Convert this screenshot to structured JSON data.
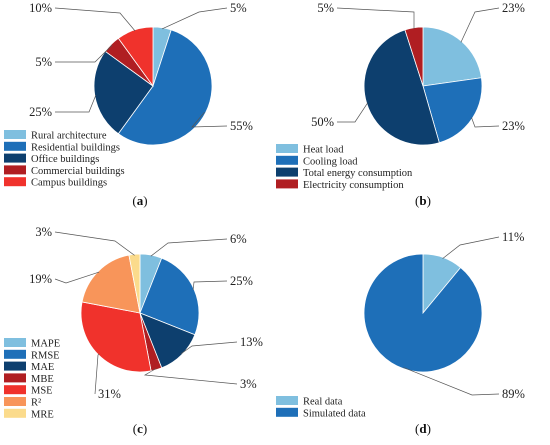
{
  "chart_data": [
    {
      "type": "pie",
      "panel": "a",
      "caption_open": "(",
      "caption_letter": "a",
      "caption_close": ")",
      "slices": [
        {
          "name": "Rural architecture",
          "value": 5,
          "label": "5%",
          "color": "#7FBFDF"
        },
        {
          "name": "Residential buildings",
          "value": 55,
          "label": "55%",
          "color": "#1E6FB8"
        },
        {
          "name": "Office buildings",
          "value": 25,
          "label": "25%",
          "color": "#0D3F6E"
        },
        {
          "name": "Commercial buildings",
          "value": 5,
          "label": "5%",
          "color": "#B01E22"
        },
        {
          "name": "Campus buildings",
          "value": 10,
          "label": "10%",
          "color": "#F0322C"
        }
      ]
    },
    {
      "type": "pie",
      "panel": "b",
      "caption_open": "(",
      "caption_letter": "b",
      "caption_close": ")",
      "slices": [
        {
          "name": "Heat load",
          "value": 23,
          "label": "23%",
          "color": "#7FBFDF"
        },
        {
          "name": "Cooling load",
          "value": 23,
          "label": "23%",
          "color": "#1E6FB8"
        },
        {
          "name": "Total energy consumption",
          "value": 50,
          "label": "50%",
          "color": "#0D3F6E"
        },
        {
          "name": "Electricity consumption",
          "value": 5,
          "label": "5%",
          "color": "#B01E22"
        }
      ]
    },
    {
      "type": "pie",
      "panel": "c",
      "caption_open": "(",
      "caption_letter": "c",
      "caption_close": ")",
      "slices": [
        {
          "name": "MAPE",
          "value": 6,
          "label": "6%",
          "color": "#7FBFDF"
        },
        {
          "name": "RMSE",
          "value": 25,
          "label": "25%",
          "color": "#1E6FB8"
        },
        {
          "name": "MAE",
          "value": 13,
          "label": "13%",
          "color": "#0D3F6E"
        },
        {
          "name": "MBE",
          "value": 3,
          "label": "3%",
          "color": "#B01E22"
        },
        {
          "name": "MSE",
          "value": 31,
          "label": "31%",
          "color": "#F0322C"
        },
        {
          "name": "R²",
          "value": 19,
          "label": "19%",
          "color": "#F8955A"
        },
        {
          "name": "MRE",
          "value": 3,
          "label": "3%",
          "color": "#FBDB8C"
        }
      ]
    },
    {
      "type": "pie",
      "panel": "d",
      "caption_open": "(",
      "caption_letter": "d",
      "caption_close": ")",
      "slices": [
        {
          "name": "Real data",
          "value": 11,
          "label": "11%",
          "color": "#7FBFDF"
        },
        {
          "name": "Simulated data",
          "value": 89,
          "label": "89%",
          "color": "#1E6FB8"
        }
      ]
    }
  ]
}
